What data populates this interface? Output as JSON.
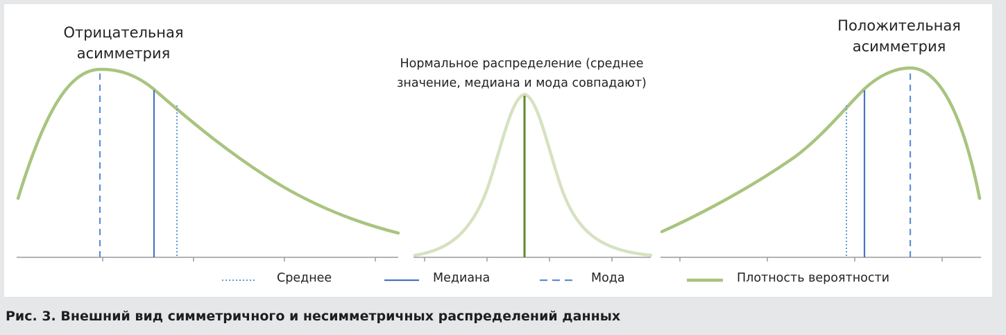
{
  "labels": {
    "negative_skew": "Отрицательная\nасимметрия",
    "normal": "Нормальное распределение (среднее\nзначение, медиана и мода совпадают)",
    "positive_skew": "Положительная\nасимметрия"
  },
  "legend": [
    {
      "label": "Среднее",
      "style": "dotted",
      "color": "#5b9bd5"
    },
    {
      "label": "Медиана",
      "style": "solid",
      "color": "#4a72c4"
    },
    {
      "label": "Мода",
      "style": "dashed",
      "color": "#5b8fd6"
    },
    {
      "label": "Плотность вероятности",
      "style": "thick",
      "color": "#a9c47f"
    }
  ],
  "colors": {
    "curve": "#a9c47f",
    "normal_curve": "#d6e2c0",
    "normal_center": "#5e8a2e",
    "axis": "#9a9a9a"
  },
  "caption": "Рис. 3. Внешний вид симметричного и несимметричных распределений данных"
}
